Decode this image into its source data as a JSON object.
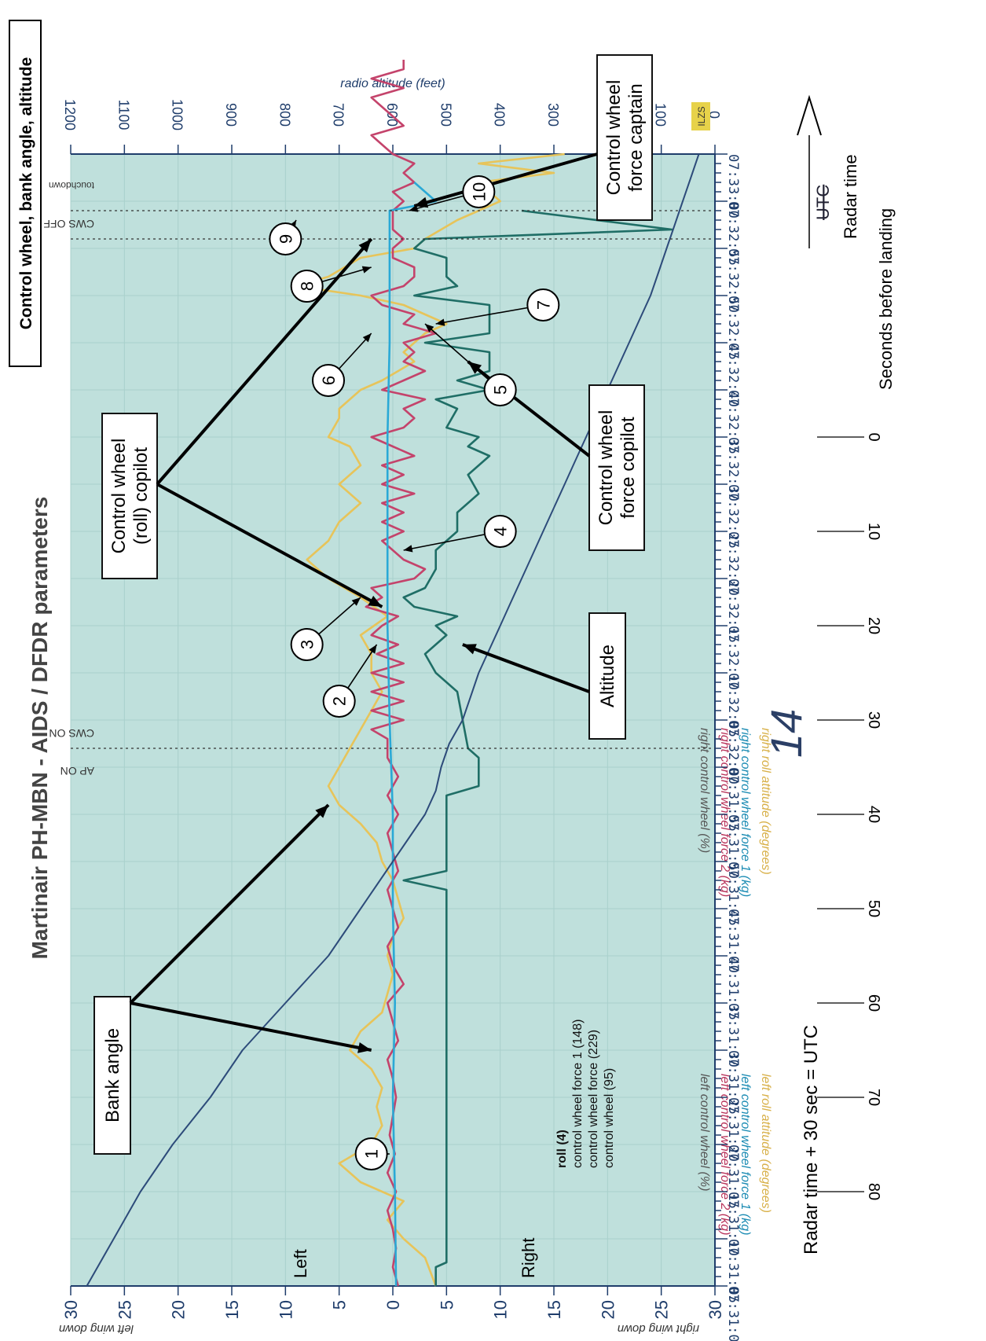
{
  "title": "Martinair  PH-MBN  -  AIDS / DFDR  parameters",
  "corner_title": "Control wheel, bank angle, altitude",
  "chart_data": {
    "type": "line",
    "x_unit": "Radar time (UTC = radar time + 30 s)",
    "x_ticks": [
      "07:31:00",
      "07:31:05",
      "07:31:10",
      "07:31:15",
      "07:31:20",
      "07:31:25",
      "07:31:30",
      "07:31:35",
      "07:31:40",
      "07:31:45",
      "07:31:50",
      "07:31:55",
      "07:32:00",
      "07:32:05",
      "07:32:10",
      "07:32:15",
      "07:32:20",
      "07:32:25",
      "07:32:30",
      "07:32:35",
      "07:32:40",
      "07:32:45",
      "07:32:50",
      "07:32:55",
      "07:33:00"
    ],
    "x_range_s": [
      0,
      120
    ],
    "left_axis": {
      "range": [
        -30,
        30
      ],
      "ticks": [
        30,
        25,
        20,
        15,
        10,
        5,
        0,
        5,
        10,
        15,
        20,
        25,
        30
      ],
      "label_top": "left wing down",
      "label_bottom": "right wing down",
      "legend_top": [
        "left roll attitude (degrees)",
        "left control wheel force 1  (kg)",
        "left control wheel force 2  (kg)",
        "left control wheel  (%)"
      ],
      "legend_bottom": [
        "right roll attitude (degrees)",
        "right control wheel force 1  (kg)",
        "right control wheel force 2  (kg)",
        "right control wheel  (%)"
      ]
    },
    "right_axis": {
      "label": "radio altitude  (feet)",
      "range": [
        0,
        1200
      ],
      "ticks": [
        1200,
        1100,
        1000,
        900,
        800,
        700,
        600,
        500,
        400,
        300,
        200,
        100,
        0
      ],
      "corner_tag": "ILZS"
    },
    "legend": {
      "lines": [
        "roll  (4)",
        "control wheel force 1  (148)",
        "control wheel force  (229)",
        "control wheel  (95)"
      ]
    },
    "series": [
      {
        "name": "Bank angle",
        "color": "#e7c45a",
        "unit": "deg",
        "points": [
          [
            0,
            -4
          ],
          [
            3,
            -3
          ],
          [
            5,
            -1
          ],
          [
            7,
            0.5
          ],
          [
            9,
            -1
          ],
          [
            11,
            3
          ],
          [
            13,
            5
          ],
          [
            15,
            2
          ],
          [
            17,
            1
          ],
          [
            19,
            1.5
          ],
          [
            21,
            1
          ],
          [
            23,
            2
          ],
          [
            25,
            4
          ],
          [
            27,
            3
          ],
          [
            29,
            1
          ],
          [
            31,
            0.5
          ],
          [
            33,
            0
          ],
          [
            35,
            0.5
          ],
          [
            37,
            0
          ],
          [
            39,
            -1
          ],
          [
            41,
            -0.5
          ],
          [
            43,
            0
          ],
          [
            45,
            1
          ],
          [
            47,
            1.5
          ],
          [
            49,
            3
          ],
          [
            51,
            5
          ],
          [
            53,
            6
          ],
          [
            55,
            5
          ],
          [
            57,
            4
          ],
          [
            59,
            3
          ],
          [
            61,
            2
          ],
          [
            63,
            1
          ],
          [
            65,
            2
          ],
          [
            67,
            2
          ],
          [
            69,
            3
          ],
          [
            71,
            0.5
          ],
          [
            73,
            3
          ],
          [
            75,
            6
          ],
          [
            77,
            8
          ],
          [
            79,
            6
          ],
          [
            81,
            5
          ],
          [
            83,
            3
          ],
          [
            85,
            5
          ],
          [
            87,
            3
          ],
          [
            89,
            4
          ],
          [
            90,
            6
          ],
          [
            92,
            5
          ],
          [
            93,
            5
          ],
          [
            95,
            3
          ],
          [
            96,
            1
          ],
          [
            98,
            -2
          ],
          [
            99,
            -1
          ],
          [
            101,
            -3
          ],
          [
            102,
            -5
          ],
          [
            103,
            -3
          ],
          [
            104,
            -1
          ],
          [
            105,
            3
          ],
          [
            106,
            9
          ],
          [
            107,
            6
          ],
          [
            109,
            3
          ],
          [
            110,
            -2
          ],
          [
            111,
            -3
          ],
          [
            113,
            -6
          ],
          [
            115,
            -10
          ],
          [
            117,
            -8
          ],
          [
            118,
            -15
          ],
          [
            119,
            -8
          ],
          [
            120,
            -16
          ]
        ]
      },
      {
        "name": "Control wheel (roll) copilot",
        "color": "#c4436b",
        "unit": "deg",
        "points": [
          [
            0,
            -0.5
          ],
          [
            2,
            0
          ],
          [
            4,
            -0.3
          ],
          [
            6,
            0
          ],
          [
            8,
            0.5
          ],
          [
            10,
            -0.3
          ],
          [
            12,
            0.5
          ],
          [
            14,
            -0.2
          ],
          [
            16,
            0.3
          ],
          [
            18,
            0
          ],
          [
            20,
            -0.3
          ],
          [
            22,
            0
          ],
          [
            24,
            0.5
          ],
          [
            26,
            -0.5
          ],
          [
            28,
            0
          ],
          [
            30,
            0.5
          ],
          [
            32,
            -1
          ],
          [
            34,
            0
          ],
          [
            36,
            0.5
          ],
          [
            38,
            -0.5
          ],
          [
            40,
            0
          ],
          [
            42,
            0.5
          ],
          [
            44,
            -0.5
          ],
          [
            46,
            0
          ],
          [
            48,
            0.5
          ],
          [
            50,
            -0.5
          ],
          [
            52,
            0.5
          ],
          [
            54,
            -0.5
          ],
          [
            56,
            0.5
          ],
          [
            58,
            0.5
          ],
          [
            59,
            2
          ],
          [
            60,
            -1
          ],
          [
            61,
            2
          ],
          [
            62,
            -1
          ],
          [
            63,
            2
          ],
          [
            64,
            -1
          ],
          [
            65,
            2
          ],
          [
            66,
            -1
          ],
          [
            67,
            1.5
          ],
          [
            68,
            -0.5
          ],
          [
            69,
            2
          ],
          [
            70,
            1
          ],
          [
            71,
            -0.5
          ],
          [
            72,
            2.5
          ],
          [
            73,
            1
          ],
          [
            74,
            2
          ],
          [
            75,
            -2
          ],
          [
            76,
            -3
          ],
          [
            77,
            -1
          ],
          [
            78,
            0
          ],
          [
            79,
            1
          ],
          [
            80,
            -1
          ],
          [
            81,
            1
          ],
          [
            82,
            -1
          ],
          [
            83,
            1
          ],
          [
            84,
            -2
          ],
          [
            85,
            1
          ],
          [
            86,
            -1
          ],
          [
            87,
            1
          ],
          [
            88,
            -2
          ],
          [
            89,
            0
          ],
          [
            90,
            2
          ],
          [
            91,
            -1
          ],
          [
            92,
            -2
          ],
          [
            93,
            -1
          ],
          [
            94,
            -3
          ],
          [
            95,
            1
          ],
          [
            96,
            -1
          ],
          [
            97,
            -3
          ],
          [
            98,
            -1
          ],
          [
            99,
            -2
          ],
          [
            100,
            -1
          ],
          [
            101,
            -4
          ],
          [
            102,
            -1
          ],
          [
            103,
            -2
          ],
          [
            104,
            1
          ],
          [
            105,
            2
          ],
          [
            106,
            -1
          ],
          [
            107,
            -2
          ],
          [
            108,
            -2
          ],
          [
            109,
            0
          ],
          [
            110,
            0
          ],
          [
            111,
            -1
          ],
          [
            112,
            0
          ],
          [
            113,
            0
          ],
          [
            114,
            0
          ],
          [
            115,
            -1
          ],
          [
            116,
            0
          ],
          [
            117,
            -2
          ],
          [
            118,
            -1
          ],
          [
            119,
            -2
          ],
          [
            120,
            0
          ],
          [
            121,
            1
          ],
          [
            122,
            2
          ],
          [
            123,
            -1
          ],
          [
            124,
            0
          ],
          [
            125,
            1
          ],
          [
            126,
            2
          ],
          [
            127,
            -1
          ],
          [
            128,
            2
          ],
          [
            129,
            -1
          ],
          [
            130,
            -1
          ]
        ]
      },
      {
        "name": "Control wheel force captain",
        "color": "#2aa9d6",
        "unit": "kg",
        "points": [
          [
            0,
            -0.3
          ],
          [
            10,
            -0.2
          ],
          [
            20,
            0
          ],
          [
            30,
            -0.2
          ],
          [
            40,
            0
          ],
          [
            50,
            0
          ],
          [
            60,
            0.3
          ],
          [
            70,
            0.5
          ],
          [
            80,
            0.5
          ],
          [
            90,
            0.5
          ],
          [
            100,
            0.3
          ],
          [
            110,
            0.3
          ],
          [
            114,
            0.3
          ],
          [
            114.5,
            -2
          ],
          [
            115,
            -4
          ],
          [
            116,
            -3
          ],
          [
            117,
            -2
          ]
        ]
      },
      {
        "name": "Control wheel force copilot",
        "color": "#1f6e66",
        "unit": "kg",
        "points": [
          [
            0,
            -4
          ],
          [
            2,
            -4
          ],
          [
            2.5,
            -5
          ],
          [
            40,
            -5
          ],
          [
            42,
            -5
          ],
          [
            43,
            -1
          ],
          [
            44,
            -5
          ],
          [
            52,
            -5
          ],
          [
            53,
            -8
          ],
          [
            56,
            -8
          ],
          [
            57,
            -7
          ],
          [
            63,
            -6
          ],
          [
            65,
            -4
          ],
          [
            67,
            -3
          ],
          [
            69,
            -5
          ],
          [
            70,
            -4
          ],
          [
            71,
            -6
          ],
          [
            72,
            -2
          ],
          [
            73,
            -1
          ],
          [
            74,
            -3
          ],
          [
            76,
            -4
          ],
          [
            78,
            -4
          ],
          [
            80,
            -6
          ],
          [
            82,
            -6
          ],
          [
            84,
            -8
          ],
          [
            86,
            -7
          ],
          [
            88,
            -9
          ],
          [
            89,
            -7
          ],
          [
            90,
            -8
          ],
          [
            91,
            -5
          ],
          [
            93,
            -6
          ],
          [
            94,
            -4
          ],
          [
            95,
            -9
          ],
          [
            96,
            -6
          ],
          [
            97,
            -9
          ],
          [
            99,
            -9
          ],
          [
            100,
            -3
          ],
          [
            101,
            -9
          ],
          [
            104,
            -9
          ],
          [
            105,
            -2
          ],
          [
            106,
            -6
          ],
          [
            107,
            -5
          ],
          [
            109,
            -5
          ],
          [
            110,
            -2
          ],
          [
            111,
            -3
          ],
          [
            112,
            -26
          ],
          [
            114,
            -12
          ]
        ]
      },
      {
        "name": "Altitude",
        "color": "#2d4b7a",
        "unit": "ft",
        "points": [
          [
            0,
            1170
          ],
          [
            10,
            1120
          ],
          [
            20,
            1070
          ],
          [
            30,
            1010
          ],
          [
            40,
            940
          ],
          [
            50,
            880
          ],
          [
            55,
            840
          ],
          [
            60,
            800
          ],
          [
            65,
            760
          ],
          [
            70,
            720
          ],
          [
            75,
            690
          ],
          [
            80,
            660
          ],
          [
            85,
            630
          ],
          [
            90,
            600
          ],
          [
            95,
            570
          ],
          [
            100,
            540
          ],
          [
            105,
            520
          ],
          [
            110,
            510
          ],
          [
            115,
            495
          ],
          [
            120,
            470
          ],
          [
            125,
            455
          ],
          [
            130,
            440
          ],
          [
            135,
            420
          ],
          [
            140,
            400
          ],
          [
            145,
            380
          ],
          [
            150,
            360
          ],
          [
            155,
            340
          ],
          [
            160,
            320
          ],
          [
            165,
            300
          ],
          [
            170,
            280
          ],
          [
            175,
            260
          ],
          [
            180,
            240
          ],
          [
            185,
            220
          ],
          [
            190,
            200
          ],
          [
            195,
            180
          ],
          [
            200,
            160
          ],
          [
            205,
            140
          ],
          [
            210,
            120
          ],
          [
            215,
            105
          ],
          [
            220,
            90
          ],
          [
            225,
            75
          ],
          [
            230,
            60
          ],
          [
            235,
            45
          ],
          [
            240,
            30
          ]
        ]
      }
    ],
    "annotations_top": [
      "AP ON",
      "CWS ON",
      "CWS OFF",
      "touchdown"
    ],
    "footer": "Radar time + 30 sec = UTC",
    "left_labels": [
      "Left",
      "Right"
    ],
    "bottom_right": {
      "utc_struck": "UTC",
      "radar": "Radar time",
      "seconds": "Seconds before landing",
      "sec_ticks": [
        "80",
        "70",
        "60",
        "50",
        "40",
        "30",
        "20",
        "10",
        "0"
      ]
    },
    "handwriting": "14",
    "callouts": {
      "bank_angle": "Bank angle",
      "roll_copilot": [
        "Control wheel",
        "(roll) copilot"
      ],
      "force_copilot": [
        "Control wheel",
        "force copilot"
      ],
      "altitude": "Altitude",
      "force_captain": [
        "Control wheel",
        "force captain"
      ]
    },
    "numbered_markers": [
      "1",
      "2",
      "3",
      "4",
      "5",
      "6",
      "7",
      "8",
      "9",
      "10"
    ]
  }
}
